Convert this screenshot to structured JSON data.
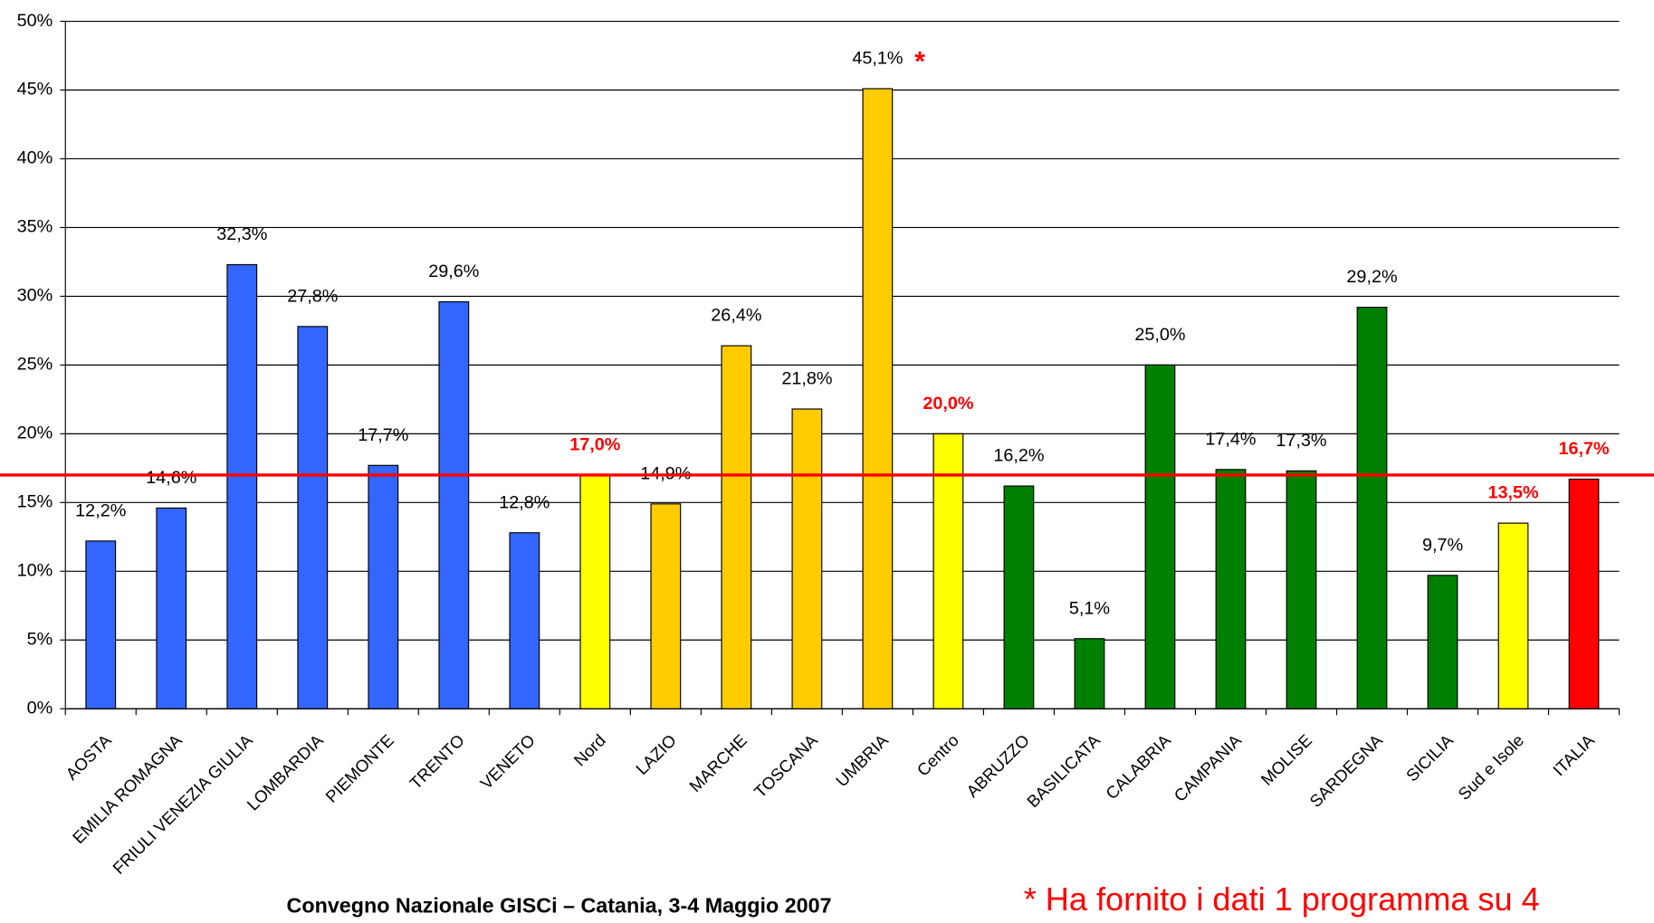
{
  "chart_data": {
    "type": "bar",
    "categories": [
      "AOSTA",
      "EMILIA ROMAGNA",
      "FRIULI VENEZIA GIULIA",
      "LOMBARDIA",
      "PIEMONTE",
      "TRENTO",
      "VENETO",
      "Nord",
      "LAZIO",
      "MARCHE",
      "TOSCANA",
      "UMBRIA",
      "Centro",
      "ABRUZZO",
      "BASILICATA",
      "CALABRIA",
      "CAMPANIA",
      "MOLISE",
      "SARDEGNA",
      "SICILIA",
      "Sud e Isole",
      "ITALIA"
    ],
    "values": [
      12.2,
      14.6,
      32.3,
      27.8,
      17.7,
      29.6,
      12.8,
      17.0,
      14.9,
      26.4,
      21.8,
      45.1,
      20.0,
      16.2,
      5.1,
      25.0,
      17.4,
      17.3,
      29.2,
      9.7,
      13.5,
      16.7
    ],
    "value_labels": [
      "12,2%",
      "14,6%",
      "32,3%",
      "27,8%",
      "17,7%",
      "29,6%",
      "12,8%",
      "17,0%",
      "14,9%",
      "26,4%",
      "21,8%",
      "45,1%",
      "20,0%",
      "16,2%",
      "5,1%",
      "25,0%",
      "17,4%",
      "17,3%",
      "29,2%",
      "9,7%",
      "13,5%",
      "16,7%"
    ],
    "colors": [
      "#3366ff",
      "#3366ff",
      "#3366ff",
      "#3366ff",
      "#3366ff",
      "#3366ff",
      "#3366ff",
      "#ffff00",
      "#ffcc00",
      "#ffcc00",
      "#ffcc00",
      "#ffcc00",
      "#ffff00",
      "#008000",
      "#008000",
      "#008000",
      "#008000",
      "#008000",
      "#008000",
      "#008000",
      "#ffff00",
      "#ff0000"
    ],
    "label_colors": [
      "#000000",
      "#000000",
      "#000000",
      "#000000",
      "#000000",
      "#000000",
      "#000000",
      "#ff0000",
      "#000000",
      "#000000",
      "#000000",
      "#000000",
      "#ff0000",
      "#000000",
      "#000000",
      "#000000",
      "#000000",
      "#000000",
      "#000000",
      "#000000",
      "#ff0000",
      "#ff0000"
    ],
    "reference_line": {
      "value": 17.0,
      "color": "#ff0000"
    },
    "ylim": [
      0,
      50
    ],
    "yticks": [
      {
        "value": 0,
        "label": "0%"
      },
      {
        "value": 5,
        "label": "5%"
      },
      {
        "value": 10,
        "label": "10%"
      },
      {
        "value": 15,
        "label": "15%"
      },
      {
        "value": 20,
        "label": "20%"
      },
      {
        "value": 25,
        "label": "25%"
      },
      {
        "value": 30,
        "label": "30%"
      },
      {
        "value": 35,
        "label": "35%"
      },
      {
        "value": 40,
        "label": "40%"
      },
      {
        "value": 45,
        "label": "45%"
      },
      {
        "value": 50,
        "label": "50%"
      }
    ],
    "grid": true,
    "annotations": [
      "*",
      "Convegno Nazionale GISCi – Catania, 3-4 Maggio 2007",
      "* Ha fornito i dati 1 programma su 4"
    ]
  }
}
